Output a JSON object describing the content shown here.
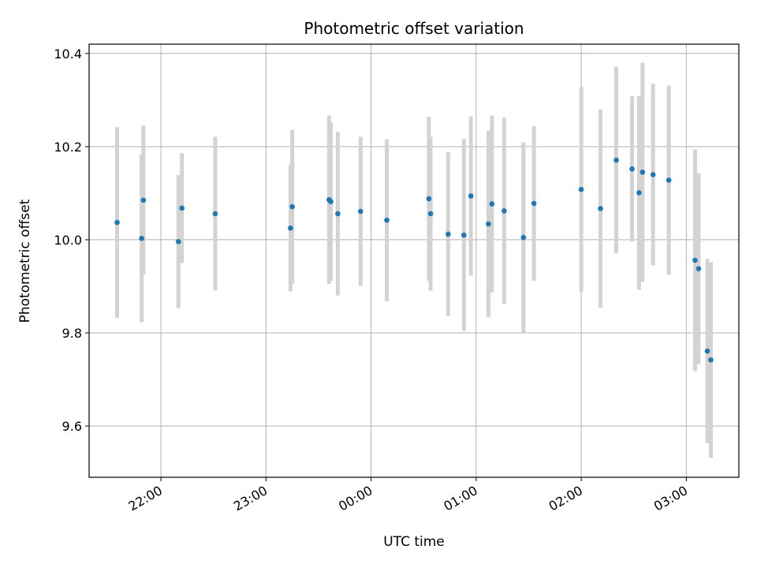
{
  "chart_data": {
    "type": "scatter",
    "title": "Photometric offset variation",
    "xlabel": "UTC time",
    "ylabel": "Photometric offset",
    "grid": true,
    "x_tick_labels": [
      "22:00",
      "23:00",
      "00:00",
      "01:00",
      "02:00",
      "03:00"
    ],
    "y_tick_labels": [
      "9.6",
      "9.8",
      "10.0",
      "10.2",
      "10.4"
    ],
    "xlim": [
      "21:19",
      "03:30"
    ],
    "ylim": [
      9.49,
      10.42
    ],
    "x_ticks": [
      "22:00",
      "23:00",
      "00:00",
      "01:00",
      "02:00",
      "03:00"
    ],
    "y_ticks": [
      9.6,
      9.8,
      10.0,
      10.2,
      10.4
    ],
    "point_color": "#1f77b4",
    "errorbar_color": "#d3d3d3",
    "points": [
      {
        "x": "21:35",
        "y": 10.037,
        "yerr": 0.205
      },
      {
        "x": "21:49",
        "y": 10.003,
        "yerr": 0.18
      },
      {
        "x": "21:50",
        "y": 10.085,
        "yerr": 0.16
      },
      {
        "x": "22:10",
        "y": 9.996,
        "yerr": 0.143
      },
      {
        "x": "22:12",
        "y": 10.068,
        "yerr": 0.118
      },
      {
        "x": "22:31",
        "y": 10.056,
        "yerr": 0.165
      },
      {
        "x": "23:14",
        "y": 10.025,
        "yerr": 0.136
      },
      {
        "x": "23:15",
        "y": 10.071,
        "yerr": 0.165
      },
      {
        "x": "23:36",
        "y": 10.086,
        "yerr": 0.181
      },
      {
        "x": "23:37",
        "y": 10.082,
        "yerr": 0.17
      },
      {
        "x": "23:41",
        "y": 10.056,
        "yerr": 0.176
      },
      {
        "x": "23:54",
        "y": 10.061,
        "yerr": 0.16
      },
      {
        "x": "00:09",
        "y": 10.042,
        "yerr": 0.174
      },
      {
        "x": "00:33",
        "y": 10.088,
        "yerr": 0.176
      },
      {
        "x": "00:34",
        "y": 10.056,
        "yerr": 0.165
      },
      {
        "x": "00:44",
        "y": 10.012,
        "yerr": 0.176
      },
      {
        "x": "00:53",
        "y": 10.01,
        "yerr": 0.206
      },
      {
        "x": "00:57",
        "y": 10.094,
        "yerr": 0.171
      },
      {
        "x": "01:07",
        "y": 10.034,
        "yerr": 0.2
      },
      {
        "x": "01:09",
        "y": 10.077,
        "yerr": 0.19
      },
      {
        "x": "01:16",
        "y": 10.062,
        "yerr": 0.2
      },
      {
        "x": "01:27",
        "y": 10.005,
        "yerr": 0.204
      },
      {
        "x": "01:33",
        "y": 10.078,
        "yerr": 0.166
      },
      {
        "x": "02:00",
        "y": 10.108,
        "yerr": 0.22
      },
      {
        "x": "02:11",
        "y": 10.067,
        "yerr": 0.213
      },
      {
        "x": "02:20",
        "y": 10.171,
        "yerr": 0.2
      },
      {
        "x": "02:29",
        "y": 10.152,
        "yerr": 0.156
      },
      {
        "x": "02:33",
        "y": 10.101,
        "yerr": 0.208
      },
      {
        "x": "02:35",
        "y": 10.145,
        "yerr": 0.235
      },
      {
        "x": "02:41",
        "y": 10.14,
        "yerr": 0.195
      },
      {
        "x": "02:50",
        "y": 10.128,
        "yerr": 0.203
      },
      {
        "x": "03:05",
        "y": 9.956,
        "yerr": 0.238
      },
      {
        "x": "03:07",
        "y": 9.938,
        "yerr": 0.205
      },
      {
        "x": "03:12",
        "y": 9.761,
        "yerr": 0.198
      },
      {
        "x": "03:14",
        "y": 9.742,
        "yerr": 0.21
      }
    ]
  }
}
